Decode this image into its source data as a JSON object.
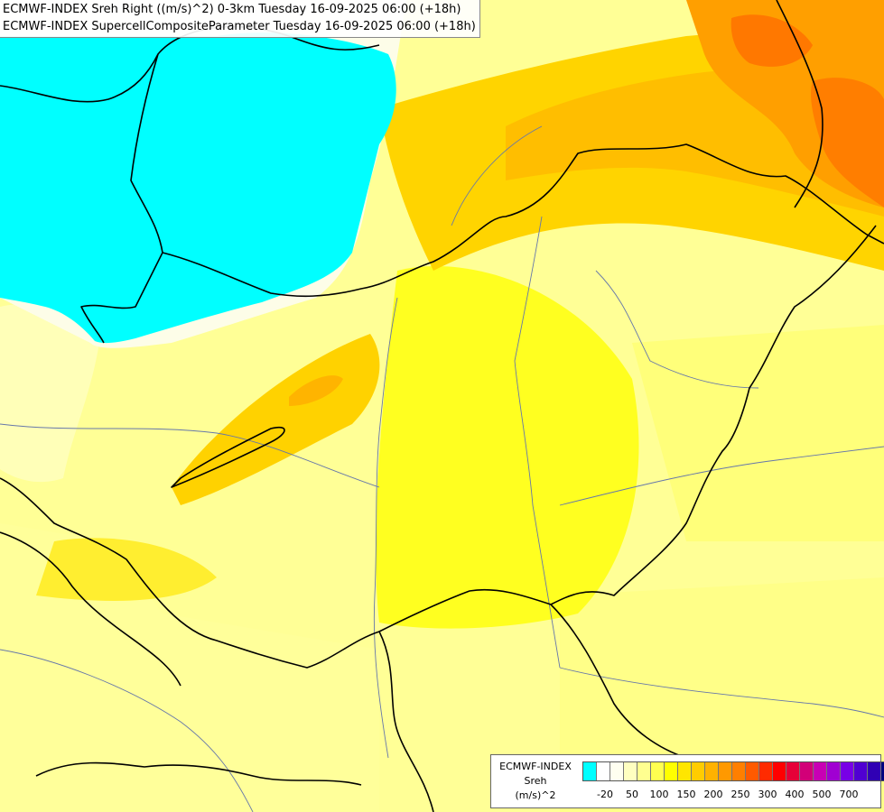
{
  "map": {
    "title_line1": "ECMWF-INDEX Sreh Right ((m/s)^2) 0-3km Tuesday 16-09-2025 06:00 (+18h)",
    "title_line2": "ECMWF-INDEX SupercellCompositeParameter Tuesday 16-09-2025 06:00 (+18h)"
  },
  "legend": {
    "line1": "ECMWF-INDEX",
    "line2": "Sreh",
    "line3": "(m/s)^2",
    "colors": [
      "#00ffff",
      "#ffffff",
      "#fffff0",
      "#ffffc0",
      "#ffff90",
      "#ffff50",
      "#ffff00",
      "#ffe600",
      "#ffcc00",
      "#ffb200",
      "#ff9900",
      "#ff7f00",
      "#ff5a00",
      "#ff2b00",
      "#ff0000",
      "#e60038",
      "#d20078",
      "#c800b4",
      "#a000d2",
      "#7800e6",
      "#5000d2",
      "#3000b4",
      "#000080"
    ],
    "ticks": [
      "-20",
      "50",
      "100",
      "150",
      "200",
      "250",
      "300",
      "400",
      "500",
      "700"
    ]
  },
  "colors": {
    "cyan_region": "#00ffff",
    "pale": "#ffffb4",
    "yellow": "#ffff00",
    "gold": "#ffdd00",
    "orange": "#ffa500",
    "deep_orange": "#ff7700"
  }
}
